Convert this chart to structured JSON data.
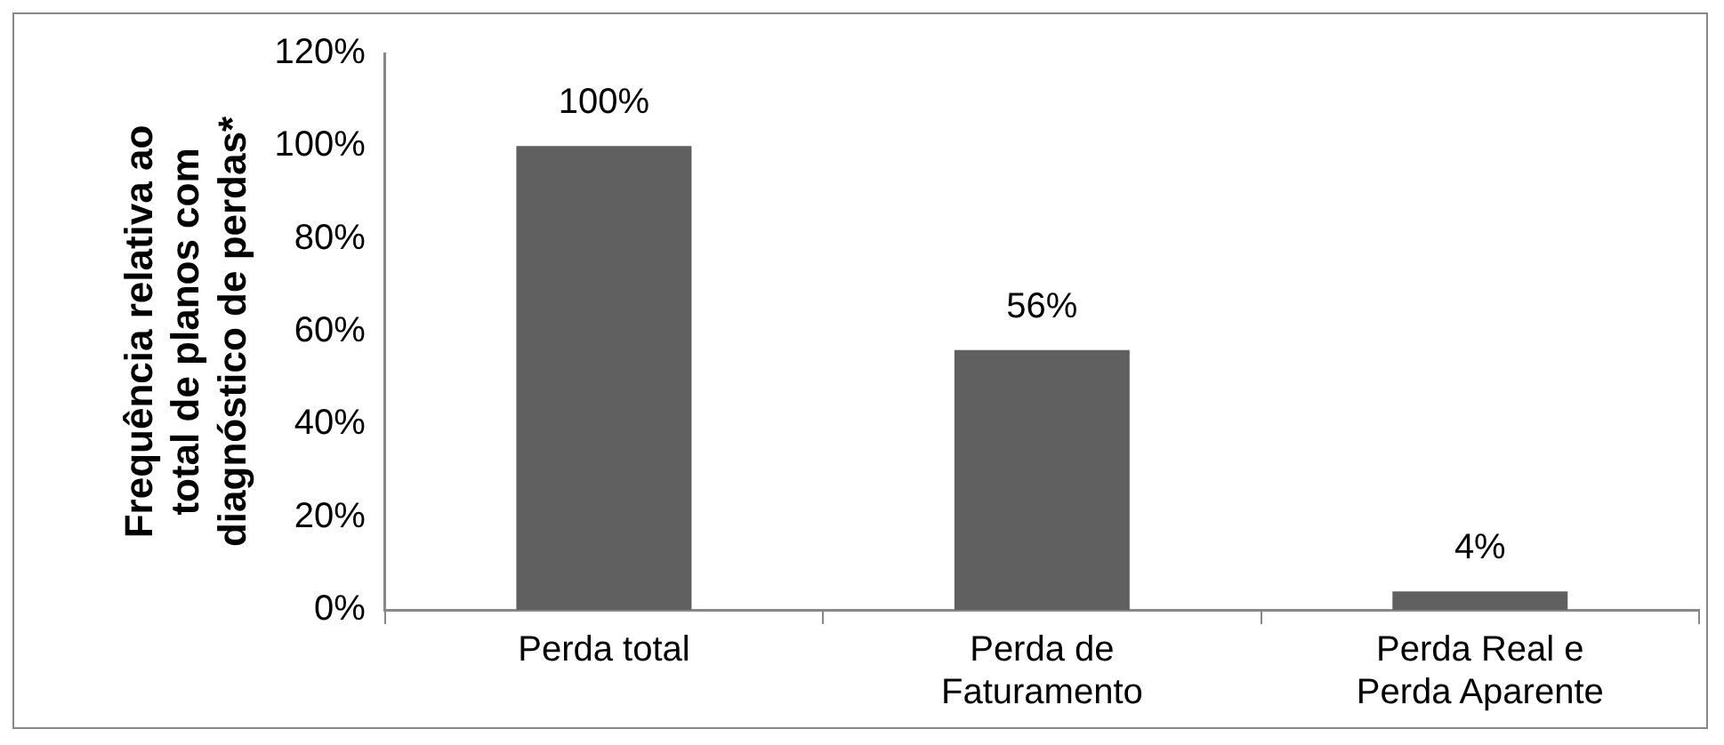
{
  "chart_data": {
    "type": "bar",
    "ylabel": "Frequência relativa ao total de planos com diagnóstico de perdas*",
    "categories": [
      "Perda total",
      "Perda de Faturamento",
      "Perda Real e Perda Aparente"
    ],
    "values": [
      100,
      56,
      4
    ],
    "color": "#606060",
    "value_labels": [
      "100%",
      "56%",
      "4%"
    ],
    "ylim": [
      0,
      120
    ],
    "yticks": [
      {
        "value": 0,
        "label": "0%"
      },
      {
        "value": 20,
        "label": "20%"
      },
      {
        "value": 40,
        "label": "40%"
      },
      {
        "value": 60,
        "label": "60%"
      },
      {
        "value": 80,
        "label": "80%"
      },
      {
        "value": 100,
        "label": "100%"
      },
      {
        "value": 120,
        "label": "120%"
      }
    ],
    "grid": false,
    "legend": false
  }
}
